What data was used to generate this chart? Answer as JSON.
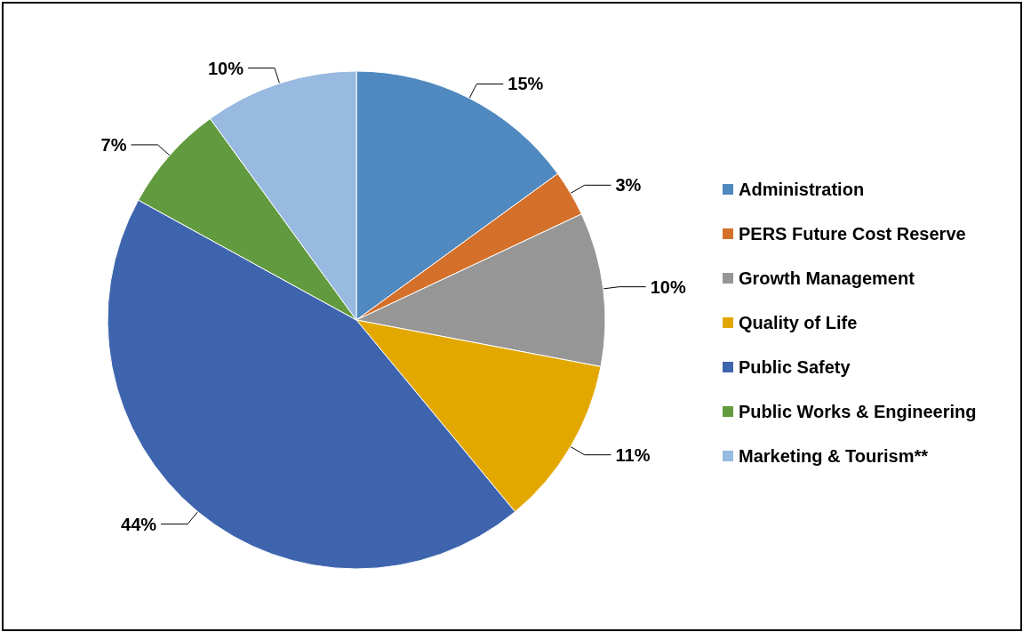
{
  "chart_data": {
    "type": "pie",
    "categories": [
      "Administration",
      "PERS Future Cost Reserve",
      "Growth Management",
      "Quality of Life",
      "Public Safety",
      "Public Works & Engineering",
      "Marketing & Tourism**"
    ],
    "values": [
      15,
      3,
      10,
      11,
      44,
      7,
      10
    ],
    "value_labels": [
      "15%",
      "3%",
      "10%",
      "11%",
      "44%",
      "7%",
      "10%"
    ],
    "colors": [
      "#4f89bf",
      "#d4702a",
      "#969696",
      "#e3a800",
      "#3e64ae",
      "#629b3f",
      "#98b9e0"
    ],
    "legend": "right"
  }
}
